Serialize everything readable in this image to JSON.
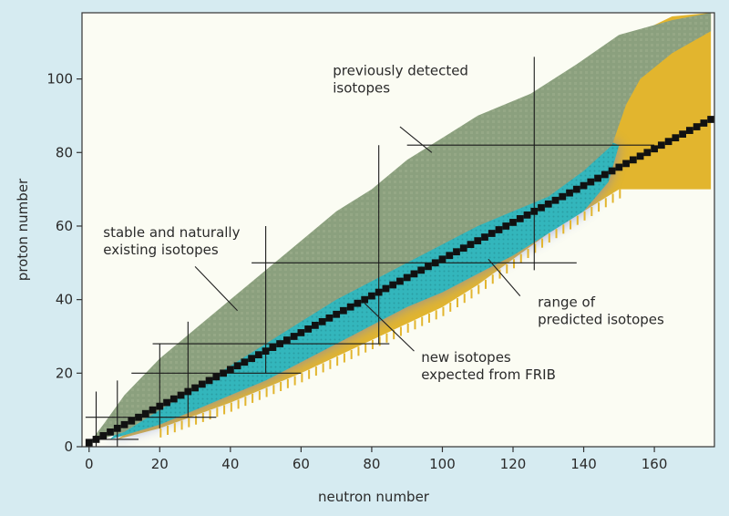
{
  "chart_data": {
    "type": "area",
    "xlabel": "neutron number",
    "ylabel": "proton number",
    "xlim": [
      -2,
      177
    ],
    "ylim": [
      0,
      118
    ],
    "x_ticks": [
      0,
      20,
      40,
      60,
      80,
      100,
      120,
      140,
      160
    ],
    "y_ticks": [
      0,
      20,
      40,
      60,
      80,
      100
    ],
    "grid": false,
    "colors": {
      "background": "#d6ebf1",
      "plot_background": "#fbfcf3",
      "predicted": "#e2b52e",
      "frib": "#31b7bd",
      "detected": "#8ba07e",
      "stable": "#111111",
      "glow": "#6f7fd0"
    },
    "series": [
      {
        "name": "previously detected isotopes",
        "lower": [
          [
            0,
            1
          ],
          [
            10,
            4
          ],
          [
            20,
            10
          ],
          [
            30,
            16
          ],
          [
            40,
            22
          ],
          [
            50,
            28
          ],
          [
            60,
            34
          ],
          [
            70,
            40
          ],
          [
            80,
            45
          ],
          [
            90,
            50
          ],
          [
            100,
            55
          ],
          [
            110,
            60
          ],
          [
            120,
            64
          ],
          [
            130,
            68
          ],
          [
            140,
            75
          ],
          [
            148,
            82
          ],
          [
            152,
            93
          ],
          [
            156,
            100
          ],
          [
            165,
            107
          ],
          [
            176,
            113
          ]
        ],
        "upper": [
          [
            176,
            118
          ],
          [
            165,
            116
          ],
          [
            150,
            112
          ],
          [
            138,
            104
          ],
          [
            125,
            96
          ],
          [
            110,
            90
          ],
          [
            100,
            84
          ],
          [
            90,
            78
          ],
          [
            80,
            70
          ],
          [
            70,
            64
          ],
          [
            60,
            56
          ],
          [
            50,
            48
          ],
          [
            40,
            40
          ],
          [
            30,
            32
          ],
          [
            20,
            24
          ],
          [
            10,
            14
          ],
          [
            4,
            6
          ],
          [
            0,
            1
          ]
        ]
      },
      {
        "name": "new isotopes expected from FRIB",
        "lower": [
          [
            6,
            2
          ],
          [
            20,
            6
          ],
          [
            30,
            10
          ],
          [
            40,
            14
          ],
          [
            50,
            18
          ],
          [
            60,
            23
          ],
          [
            70,
            28
          ],
          [
            80,
            33
          ],
          [
            90,
            38
          ],
          [
            100,
            42
          ],
          [
            110,
            47
          ],
          [
            120,
            52
          ],
          [
            130,
            58
          ],
          [
            140,
            64
          ],
          [
            147,
            72
          ],
          [
            150,
            82
          ]
        ],
        "upper": [
          [
            150,
            82
          ],
          [
            145,
            84
          ],
          [
            130,
            79
          ],
          [
            115,
            72
          ],
          [
            100,
            62
          ],
          [
            90,
            56
          ],
          [
            80,
            50
          ],
          [
            70,
            44
          ],
          [
            60,
            38
          ],
          [
            50,
            31
          ],
          [
            40,
            24
          ],
          [
            30,
            18
          ],
          [
            20,
            12
          ],
          [
            10,
            6
          ],
          [
            6,
            2
          ]
        ]
      },
      {
        "name": "range of predicted isotopes",
        "lower": [
          [
            8,
            2
          ],
          [
            20,
            5
          ],
          [
            40,
            12
          ],
          [
            60,
            20
          ],
          [
            80,
            29
          ],
          [
            100,
            38
          ],
          [
            110,
            44
          ],
          [
            120,
            51
          ],
          [
            130,
            58
          ],
          [
            140,
            64
          ],
          [
            150,
            70
          ],
          [
            176,
            70
          ]
        ],
        "upper": [
          [
            176,
            118
          ],
          [
            165,
            117
          ],
          [
            150,
            110
          ],
          [
            145,
            97
          ],
          [
            148,
            80
          ],
          [
            135,
            75
          ],
          [
            115,
            65
          ],
          [
            100,
            57
          ],
          [
            80,
            45
          ],
          [
            60,
            33
          ],
          [
            40,
            22
          ],
          [
            20,
            10
          ],
          [
            8,
            2
          ]
        ]
      },
      {
        "name": "stable and naturally existing isotopes",
        "points": [
          [
            0,
            1
          ],
          [
            2,
            2
          ],
          [
            4,
            3
          ],
          [
            6,
            4
          ],
          [
            8,
            5
          ],
          [
            10,
            6
          ],
          [
            12,
            7
          ],
          [
            14,
            8
          ],
          [
            16,
            9
          ],
          [
            18,
            10
          ],
          [
            20,
            11
          ],
          [
            22,
            12
          ],
          [
            24,
            13
          ],
          [
            26,
            14
          ],
          [
            28,
            15
          ],
          [
            30,
            16
          ],
          [
            32,
            17
          ],
          [
            34,
            18
          ],
          [
            36,
            19
          ],
          [
            38,
            20
          ],
          [
            40,
            21
          ],
          [
            42,
            22
          ],
          [
            44,
            23
          ],
          [
            46,
            24
          ],
          [
            48,
            25
          ],
          [
            50,
            26
          ],
          [
            52,
            27
          ],
          [
            54,
            28
          ],
          [
            56,
            29
          ],
          [
            58,
            30
          ],
          [
            60,
            31
          ],
          [
            62,
            32
          ],
          [
            64,
            33
          ],
          [
            66,
            34
          ],
          [
            68,
            35
          ],
          [
            70,
            36
          ],
          [
            72,
            37
          ],
          [
            74,
            38
          ],
          [
            76,
            39
          ],
          [
            78,
            40
          ],
          [
            80,
            41
          ],
          [
            82,
            42
          ],
          [
            84,
            43
          ],
          [
            86,
            44
          ],
          [
            88,
            45
          ],
          [
            90,
            46
          ],
          [
            92,
            47
          ],
          [
            94,
            48
          ],
          [
            96,
            49
          ],
          [
            98,
            50
          ],
          [
            100,
            51
          ],
          [
            102,
            52
          ],
          [
            104,
            53
          ],
          [
            106,
            54
          ],
          [
            108,
            55
          ],
          [
            110,
            56
          ],
          [
            112,
            57
          ],
          [
            114,
            58
          ],
          [
            116,
            59
          ],
          [
            118,
            60
          ],
          [
            120,
            61
          ],
          [
            122,
            62
          ],
          [
            124,
            63
          ],
          [
            126,
            64
          ],
          [
            128,
            65
          ],
          [
            130,
            66
          ],
          [
            132,
            67
          ],
          [
            134,
            68
          ],
          [
            136,
            69
          ],
          [
            138,
            70
          ],
          [
            140,
            71
          ],
          [
            142,
            72
          ],
          [
            144,
            73
          ],
          [
            146,
            74
          ],
          [
            148,
            75
          ],
          [
            150,
            76
          ],
          [
            152,
            77
          ],
          [
            154,
            78
          ],
          [
            156,
            79
          ],
          [
            158,
            80
          ],
          [
            160,
            81
          ],
          [
            162,
            82
          ],
          [
            164,
            83
          ],
          [
            166,
            84
          ],
          [
            168,
            85
          ],
          [
            170,
            86
          ],
          [
            172,
            87
          ],
          [
            174,
            88
          ],
          [
            176,
            89
          ]
        ]
      }
    ],
    "magic_lines": {
      "vertical": [
        {
          "x": 2,
          "y": [
            0,
            15
          ]
        },
        {
          "x": 8,
          "y": [
            0,
            18
          ]
        },
        {
          "x": 20,
          "y": [
            5,
            28
          ]
        },
        {
          "x": 28,
          "y": [
            8,
            34
          ]
        },
        {
          "x": 50,
          "y": [
            20,
            60
          ]
        },
        {
          "x": 82,
          "y": [
            28,
            82
          ]
        },
        {
          "x": 126,
          "y": [
            48,
            106
          ]
        }
      ],
      "horizontal": [
        {
          "y": 2,
          "x": [
            -1,
            14
          ]
        },
        {
          "y": 8,
          "x": [
            -1,
            36
          ]
        },
        {
          "y": 20,
          "x": [
            12,
            60
          ]
        },
        {
          "y": 28,
          "x": [
            18,
            85
          ]
        },
        {
          "y": 50,
          "x": [
            46,
            138
          ]
        },
        {
          "y": 82,
          "x": [
            90,
            160
          ]
        }
      ]
    },
    "annotations": [
      {
        "lines": [
          "previously detected",
          "isotopes"
        ],
        "pos": [
          69,
          101
        ],
        "arrow_from": [
          88,
          87
        ],
        "arrow_to": [
          97,
          80
        ]
      },
      {
        "lines": [
          "stable and naturally",
          "existing isotopes"
        ],
        "pos": [
          4,
          57
        ],
        "arrow_from": [
          30,
          49
        ],
        "arrow_to": [
          42,
          37
        ]
      },
      {
        "lines": [
          "range of",
          "predicted isotopes"
        ],
        "pos": [
          127,
          38
        ],
        "arrow_from": [
          122,
          41
        ],
        "arrow_to": [
          113,
          51
        ]
      },
      {
        "lines": [
          "new isotopes",
          "expected from FRIB"
        ],
        "pos": [
          94,
          23
        ],
        "arrow_from": [
          92,
          26
        ],
        "arrow_to": [
          78,
          39
        ]
      }
    ]
  }
}
